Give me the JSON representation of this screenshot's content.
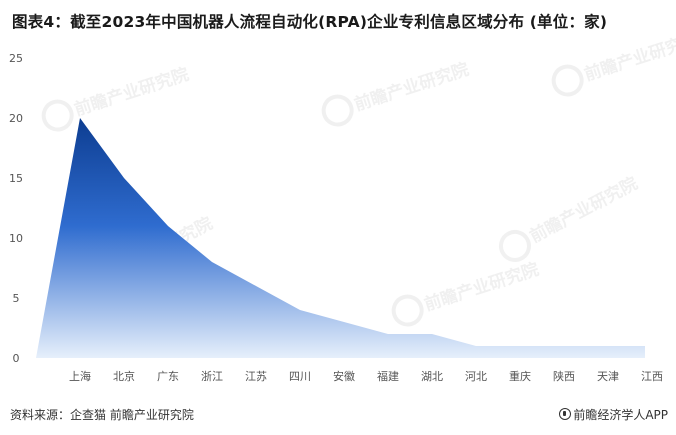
{
  "header": {
    "title": "图表4：截至2023年中国机器人流程自动化(RPA)企业专利信息区域分布 (单位：家)"
  },
  "footer": {
    "source": "资料来源：企查猫 前瞻产业研究院",
    "brand": "前瞻经济学人APP",
    "brand_icon": "qianzhan-logo-icon"
  },
  "watermark": {
    "name": "前瞻产业研究院"
  },
  "colors": {
    "area_top": "#0d3d91",
    "area_mid": "#2f6ccf",
    "area_bottom": "#e6effb",
    "text": "#333333"
  },
  "chart_data": {
    "type": "area",
    "title": "图表4：截至2023年中国机器人流程自动化(RPA)企业专利信息区域分布 (单位：家)",
    "xlabel": "",
    "ylabel": "",
    "categories": [
      "上海",
      "北京",
      "广东",
      "浙江",
      "江苏",
      "四川",
      "安徽",
      "福建",
      "湖北",
      "河北",
      "重庆",
      "陕西",
      "天津",
      "江西"
    ],
    "values": [
      20,
      15,
      11,
      8,
      6,
      4,
      3,
      2,
      2,
      1,
      1,
      1,
      1,
      1
    ],
    "ylim": [
      0,
      25
    ],
    "yticks": [
      0,
      5,
      10,
      15,
      20,
      25
    ],
    "grid": false,
    "legend": "none"
  }
}
